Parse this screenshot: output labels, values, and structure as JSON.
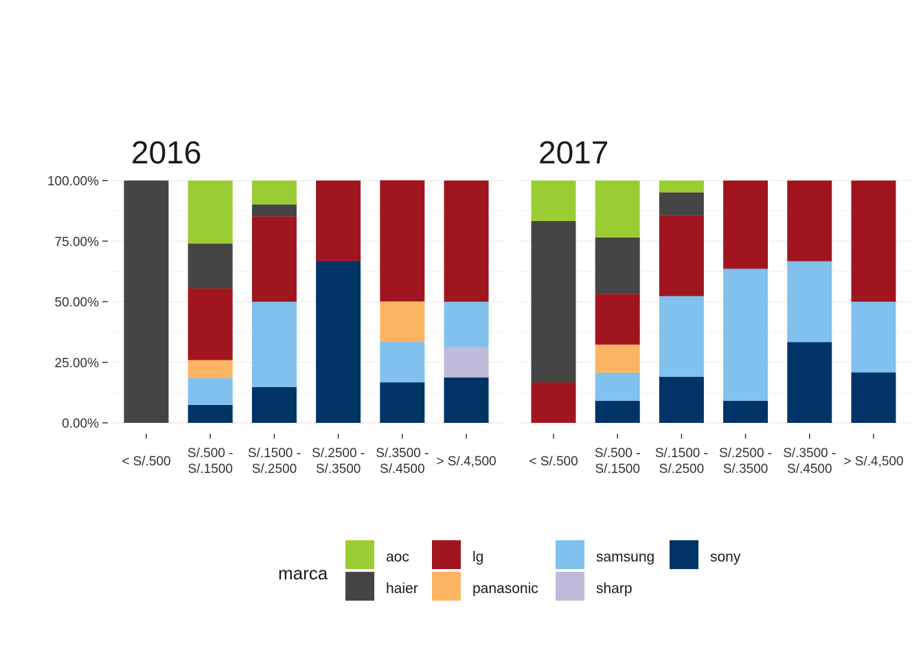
{
  "chart_data": {
    "type": "bar",
    "stacked": true,
    "percent": true,
    "ylim": [
      0,
      100
    ],
    "y_ticks": [
      "0.00%",
      "25.00%",
      "50.00%",
      "75.00%",
      "100.00%"
    ],
    "categories": [
      [
        "< S/.500"
      ],
      [
        "S/.500 -",
        "S/.1500"
      ],
      [
        "S/.1500 -",
        "S/.2500"
      ],
      [
        "S/.2500 -",
        "S/.3500"
      ],
      [
        "S/.3500 -",
        "S/.4500"
      ],
      [
        "> S/.4,500"
      ]
    ],
    "stack_order_bottom_to_top": [
      "sony",
      "sharp",
      "samsung",
      "panasonic",
      "lg",
      "haier",
      "aoc"
    ],
    "colors": {
      "aoc": "#9ACD32",
      "haier": "#454545",
      "lg": "#A11520",
      "panasonic": "#FDB462",
      "samsung": "#80C1ED",
      "sharp": "#BEBADA",
      "sony": "#003366"
    },
    "legend": {
      "title": "marca",
      "position": "bottom",
      "rows": [
        [
          "aoc",
          "lg",
          "samsung",
          "sony"
        ],
        [
          "haier",
          "panasonic",
          "sharp"
        ]
      ]
    },
    "panels": [
      {
        "title": "2016",
        "series": [
          {
            "name": "sony",
            "values": [
              0,
              7.4,
              14.8,
              66.7,
              16.7,
              18.75
            ]
          },
          {
            "name": "sharp",
            "values": [
              0,
              0,
              0,
              0,
              0,
              12.5
            ]
          },
          {
            "name": "samsung",
            "values": [
              0,
              11.1,
              35.2,
              0,
              16.7,
              18.75
            ]
          },
          {
            "name": "panasonic",
            "values": [
              0,
              7.4,
              0,
              0,
              16.7,
              0
            ]
          },
          {
            "name": "lg",
            "values": [
              0,
              29.6,
              35.2,
              33.3,
              50.0,
              50.0
            ]
          },
          {
            "name": "haier",
            "values": [
              100,
              18.5,
              4.9,
              0,
              0,
              0
            ]
          },
          {
            "name": "aoc",
            "values": [
              0,
              26.0,
              9.9,
              0,
              0,
              0
            ]
          }
        ]
      },
      {
        "title": "2017",
        "series": [
          {
            "name": "sony",
            "values": [
              0,
              9.1,
              19.0,
              9.1,
              33.3,
              20.8
            ]
          },
          {
            "name": "sharp",
            "values": [
              0,
              0,
              0,
              0,
              0,
              0
            ]
          },
          {
            "name": "samsung",
            "values": [
              0,
              11.6,
              33.3,
              54.5,
              33.4,
              29.2
            ]
          },
          {
            "name": "panasonic",
            "values": [
              0,
              11.6,
              0,
              0,
              0,
              0
            ]
          },
          {
            "name": "lg",
            "values": [
              16.7,
              20.9,
              33.3,
              36.4,
              33.3,
              50.0
            ]
          },
          {
            "name": "haier",
            "values": [
              66.6,
              23.3,
              9.5,
              0,
              0,
              0
            ]
          },
          {
            "name": "aoc",
            "values": [
              16.7,
              23.5,
              4.9,
              0,
              0,
              0
            ]
          }
        ]
      }
    ]
  }
}
